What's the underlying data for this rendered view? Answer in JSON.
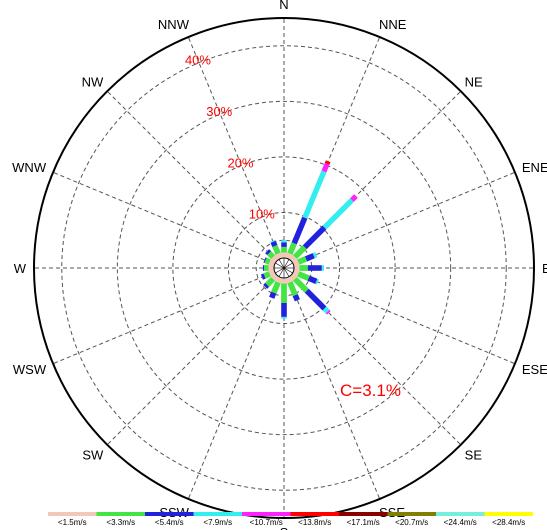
{
  "chart_data": {
    "type": "wind-rose",
    "directions": [
      "N",
      "NNE",
      "NE",
      "ENE",
      "E",
      "ESE",
      "SE",
      "SSE",
      "S",
      "SSW",
      "SW",
      "WSW",
      "W",
      "WNW",
      "NW",
      "NNW"
    ],
    "ring_labels": [
      "10%",
      "20%",
      "30%",
      "40%"
    ],
    "ring_values": [
      10,
      20,
      30,
      40
    ],
    "rlim": [
      0,
      45
    ],
    "grid": true,
    "calm_label": "C=3.1%",
    "speed_bins": [
      {
        "label": "<1.5m/s",
        "color": "#f2c9b8"
      },
      {
        "label": "<3.3m/s",
        "color": "#44e444"
      },
      {
        "label": "<5.4m/s",
        "color": "#2222dd"
      },
      {
        "label": "<7.9m/s",
        "color": "#33eeee"
      },
      {
        "label": "<10.7m/s",
        "color": "#ff22ff"
      },
      {
        "label": "<13.8m/s",
        "color": "#ff0000"
      },
      {
        "label": "<17.1m/s",
        "color": "#880000"
      },
      {
        "label": "<20.7m/s",
        "color": "#808000"
      },
      {
        "label": "<24.4m/s",
        "color": "#77eedd"
      },
      {
        "label": "<28.4m/s",
        "color": "#ffff00"
      }
    ],
    "series": [
      {
        "direction": "N",
        "values": [
          1.0,
          1.0,
          0.8,
          0.4,
          0.0,
          0,
          0,
          0,
          0,
          0
        ]
      },
      {
        "direction": "NNE",
        "values": [
          1.0,
          2.0,
          5.0,
          9.0,
          1.5,
          0.5,
          0,
          0,
          0,
          0
        ]
      },
      {
        "direction": "NE",
        "values": [
          1.0,
          2.5,
          5.0,
          7.0,
          1.0,
          0,
          0,
          0,
          0,
          0
        ]
      },
      {
        "direction": "ENE",
        "values": [
          1.0,
          1.5,
          1.5,
          0.5,
          0,
          0,
          0,
          0,
          0,
          0
        ]
      },
      {
        "direction": "E",
        "values": [
          1.0,
          1.5,
          2.5,
          0.4,
          0,
          0,
          0,
          0,
          0,
          0
        ]
      },
      {
        "direction": "ESE",
        "values": [
          1.0,
          2.0,
          1.5,
          0.3,
          0,
          0,
          0,
          0,
          0,
          0
        ]
      },
      {
        "direction": "SE",
        "values": [
          1.0,
          3.0,
          4.5,
          0.8,
          0.3,
          0,
          0,
          0,
          0,
          0
        ]
      },
      {
        "direction": "SSE",
        "values": [
          1.0,
          2.5,
          1.0,
          0,
          0,
          0,
          0,
          0,
          0,
          0
        ]
      },
      {
        "direction": "S",
        "values": [
          1.0,
          3.5,
          2.5,
          0.3,
          0,
          0,
          0,
          0,
          0,
          0
        ]
      },
      {
        "direction": "SSW",
        "values": [
          1.0,
          2.0,
          1.0,
          0,
          0,
          0,
          0,
          0,
          0,
          0
        ]
      },
      {
        "direction": "SW",
        "values": [
          1.0,
          1.5,
          0.5,
          0,
          0,
          0,
          0,
          0,
          0,
          0
        ]
      },
      {
        "direction": "WSW",
        "values": [
          1.0,
          1.0,
          0.5,
          0,
          0,
          0,
          0,
          0,
          0,
          0
        ]
      },
      {
        "direction": "W",
        "values": [
          1.0,
          0.8,
          0.2,
          0,
          0,
          0,
          0,
          0,
          0,
          0
        ]
      },
      {
        "direction": "WNW",
        "values": [
          1.0,
          0.8,
          0.2,
          0,
          0,
          0,
          0,
          0,
          0,
          0
        ]
      },
      {
        "direction": "NW",
        "values": [
          1.0,
          1.0,
          0.5,
          0,
          0,
          0,
          0,
          0,
          0,
          0
        ]
      },
      {
        "direction": "NNW",
        "values": [
          1.0,
          1.5,
          0.8,
          0.2,
          0,
          0,
          0,
          0,
          0,
          0
        ]
      }
    ]
  }
}
